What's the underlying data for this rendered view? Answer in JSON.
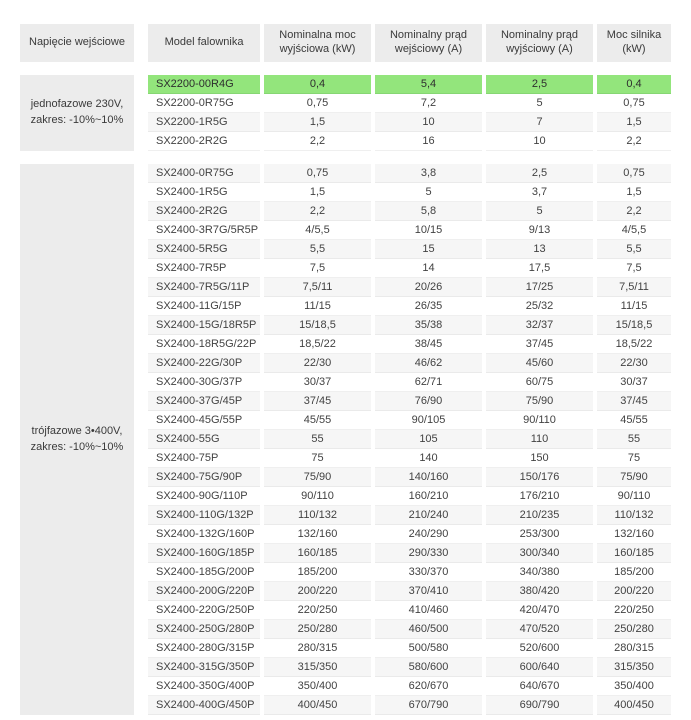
{
  "colors": {
    "highlight_green": "#93e57c",
    "header_bg": "#ececec",
    "row_stripe": "#f6f6f6"
  },
  "table": {
    "headers": [
      "Napięcie wejściowe",
      "Model falownika",
      "Nominalna moc wyjściowa (kW)",
      "Nominalny prąd wejściowy (A)",
      "Nominalny prąd wyjściowy (A)",
      "Moc silnika (kW)"
    ],
    "groups": [
      {
        "voltage_lines": [
          "jednofazowe 230V,",
          "zakres: -10%~10%"
        ],
        "rows": [
          {
            "model": "SX2200-00R4G",
            "power_kw": "0,4",
            "input_a": "5,4",
            "output_a": "2,5",
            "motor_kw": "0,4",
            "highlight": true
          },
          {
            "model": "SX2200-0R75G",
            "power_kw": "0,75",
            "input_a": "7,2",
            "output_a": "5",
            "motor_kw": "0,75"
          },
          {
            "model": "SX2200-1R5G",
            "power_kw": "1,5",
            "input_a": "10",
            "output_a": "7",
            "motor_kw": "1,5"
          },
          {
            "model": "SX2200-2R2G",
            "power_kw": "2,2",
            "input_a": "16",
            "output_a": "10",
            "motor_kw": "2,2"
          }
        ]
      },
      {
        "voltage_lines": [
          "trójfazowe 3•400V,",
          "zakres: -10%~10%"
        ],
        "rows": [
          {
            "model": "SX2400-0R75G",
            "power_kw": "0,75",
            "input_a": "3,8",
            "output_a": "2,5",
            "motor_kw": "0,75"
          },
          {
            "model": "SX2400-1R5G",
            "power_kw": "1,5",
            "input_a": "5",
            "output_a": "3,7",
            "motor_kw": "1,5"
          },
          {
            "model": "SX2400-2R2G",
            "power_kw": "2,2",
            "input_a": "5,8",
            "output_a": "5",
            "motor_kw": "2,2"
          },
          {
            "model": "SX2400-3R7G/5R5P",
            "power_kw": "4/5,5",
            "input_a": "10/15",
            "output_a": "9/13",
            "motor_kw": "4/5,5"
          },
          {
            "model": "SX2400-5R5G",
            "power_kw": "5,5",
            "input_a": "15",
            "output_a": "13",
            "motor_kw": "5,5"
          },
          {
            "model": "SX2400-7R5P",
            "power_kw": "7,5",
            "input_a": "14",
            "output_a": "17,5",
            "motor_kw": "7,5"
          },
          {
            "model": "SX2400-7R5G/11P",
            "power_kw": "7,5/11",
            "input_a": "20/26",
            "output_a": "17/25",
            "motor_kw": "7,5/11"
          },
          {
            "model": "SX2400-11G/15P",
            "power_kw": "11/15",
            "input_a": "26/35",
            "output_a": "25/32",
            "motor_kw": "11/15"
          },
          {
            "model": "SX2400-15G/18R5P",
            "power_kw": "15/18,5",
            "input_a": "35/38",
            "output_a": "32/37",
            "motor_kw": "15/18,5"
          },
          {
            "model": "SX2400-18R5G/22P",
            "power_kw": "18,5/22",
            "input_a": "38/45",
            "output_a": "37/45",
            "motor_kw": "18,5/22"
          },
          {
            "model": "SX2400-22G/30P",
            "power_kw": "22/30",
            "input_a": "46/62",
            "output_a": "45/60",
            "motor_kw": "22/30"
          },
          {
            "model": "SX2400-30G/37P",
            "power_kw": "30/37",
            "input_a": "62/71",
            "output_a": "60/75",
            "motor_kw": "30/37"
          },
          {
            "model": "SX2400-37G/45P",
            "power_kw": "37/45",
            "input_a": "76/90",
            "output_a": "75/90",
            "motor_kw": "37/45"
          },
          {
            "model": "SX2400-45G/55P",
            "power_kw": "45/55",
            "input_a": "90/105",
            "output_a": "90/110",
            "motor_kw": "45/55"
          },
          {
            "model": "SX2400-55G",
            "power_kw": "55",
            "input_a": "105",
            "output_a": "110",
            "motor_kw": "55"
          },
          {
            "model": "SX2400-75P",
            "power_kw": "75",
            "input_a": "140",
            "output_a": "150",
            "motor_kw": "75"
          },
          {
            "model": "SX2400-75G/90P",
            "power_kw": "75/90",
            "input_a": "140/160",
            "output_a": "150/176",
            "motor_kw": "75/90"
          },
          {
            "model": "SX2400-90G/110P",
            "power_kw": "90/110",
            "input_a": "160/210",
            "output_a": "176/210",
            "motor_kw": "90/110"
          },
          {
            "model": "SX2400-110G/132P",
            "power_kw": "110/132",
            "input_a": "210/240",
            "output_a": "210/235",
            "motor_kw": "110/132"
          },
          {
            "model": "SX2400-132G/160P",
            "power_kw": "132/160",
            "input_a": "240/290",
            "output_a": "253/300",
            "motor_kw": "132/160"
          },
          {
            "model": "SX2400-160G/185P",
            "power_kw": "160/185",
            "input_a": "290/330",
            "output_a": "300/340",
            "motor_kw": "160/185"
          },
          {
            "model": "SX2400-185G/200P",
            "power_kw": "185/200",
            "input_a": "330/370",
            "output_a": "340/380",
            "motor_kw": "185/200"
          },
          {
            "model": "SX2400-200G/220P",
            "power_kw": "200/220",
            "input_a": "370/410",
            "output_a": "380/420",
            "motor_kw": "200/220"
          },
          {
            "model": "SX2400-220G/250P",
            "power_kw": "220/250",
            "input_a": "410/460",
            "output_a": "420/470",
            "motor_kw": "220/250"
          },
          {
            "model": "SX2400-250G/280P",
            "power_kw": "250/280",
            "input_a": "460/500",
            "output_a": "470/520",
            "motor_kw": "250/280"
          },
          {
            "model": "SX2400-280G/315P",
            "power_kw": "280/315",
            "input_a": "500/580",
            "output_a": "520/600",
            "motor_kw": "280/315"
          },
          {
            "model": "SX2400-315G/350P",
            "power_kw": "315/350",
            "input_a": "580/600",
            "output_a": "600/640",
            "motor_kw": "315/350"
          },
          {
            "model": "SX2400-350G/400P",
            "power_kw": "350/400",
            "input_a": "620/670",
            "output_a": "640/670",
            "motor_kw": "350/400"
          },
          {
            "model": "SX2400-400G/450P",
            "power_kw": "400/450",
            "input_a": "670/790",
            "output_a": "690/790",
            "motor_kw": "400/450"
          }
        ]
      }
    ]
  }
}
